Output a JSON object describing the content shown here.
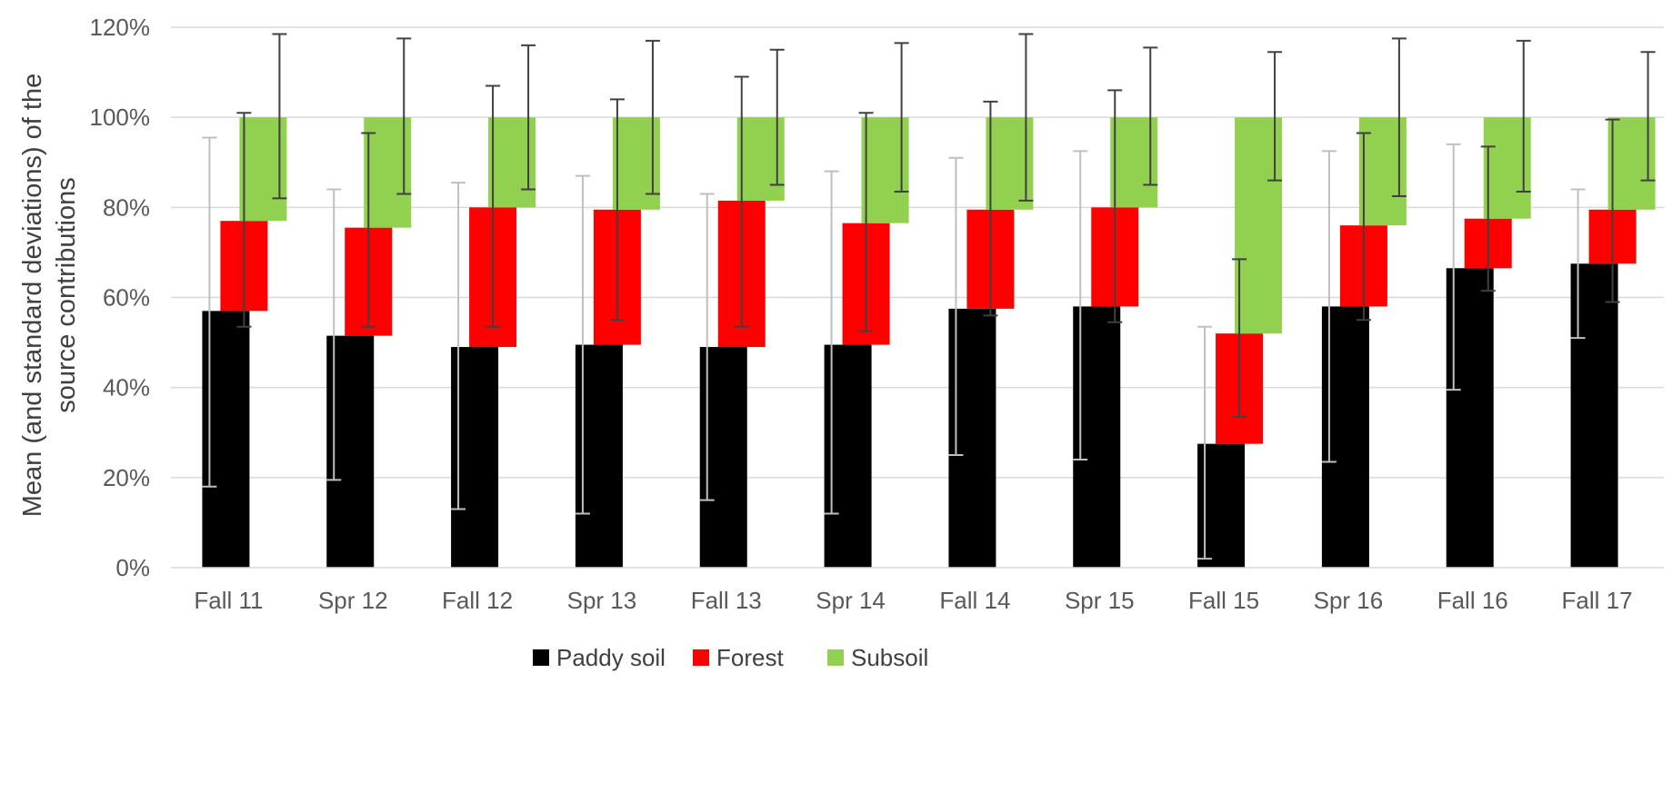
{
  "chart_data": {
    "type": "bar",
    "stacked": true,
    "ylabel_lines": [
      "Mean (and standard deviations) of the",
      "source contributions"
    ],
    "xlabel": "",
    "ylim": [
      0,
      120
    ],
    "ytick_values": [
      0,
      20,
      40,
      60,
      80,
      100,
      120
    ],
    "ytick_labels": [
      "0%",
      "20%",
      "40%",
      "60%",
      "80%",
      "100%",
      "120%"
    ],
    "grid": "horizontal",
    "legend_position": "bottom",
    "categories": [
      "Fall 11",
      "Spr 12",
      "Fall 12",
      "Spr 13",
      "Fall 13",
      "Spr 14",
      "Fall 14",
      "Spr 15",
      "Fall 15",
      "Spr 16",
      "Fall 16",
      "Fall 17"
    ],
    "series": [
      {
        "name": "Paddy soil",
        "color": "#000000",
        "errorbar_color": "#bfbfbf",
        "values": [
          57,
          51.5,
          49,
          49.5,
          49,
          49.5,
          57.5,
          58,
          27.5,
          58,
          66.5,
          67.5
        ],
        "error_low": [
          18,
          19.5,
          13,
          12,
          15,
          12,
          25,
          24,
          2,
          23.5,
          39.5,
          51
        ],
        "error_high": [
          95.5,
          84,
          85.5,
          87,
          83,
          88,
          91,
          92.5,
          53.5,
          92.5,
          94,
          84
        ]
      },
      {
        "name": "Forest",
        "color": "#ff0000",
        "errorbar_color": "#404040",
        "values": [
          20,
          24,
          31,
          30,
          32.5,
          27,
          22,
          22,
          24.5,
          18,
          11,
          12
        ],
        "error_low": [
          53.5,
          53.5,
          53.5,
          55,
          53.5,
          52.5,
          56,
          54.5,
          33.5,
          55,
          61.5,
          59
        ],
        "error_high": [
          101,
          96.5,
          107,
          104,
          109,
          101,
          103.5,
          106,
          68.5,
          96.5,
          93.5,
          99.5
        ]
      },
      {
        "name": "Subsoil",
        "color": "#92d050",
        "errorbar_color": "#404040",
        "values": [
          23,
          24.5,
          20,
          20.5,
          18.5,
          23.5,
          20.5,
          20,
          48,
          24,
          22.5,
          20.5
        ],
        "error_low": [
          82,
          83,
          84,
          83,
          85,
          83.5,
          81.5,
          85,
          86,
          82.5,
          83.5,
          86
        ],
        "error_high": [
          118.5,
          117.5,
          116,
          117,
          115,
          116.5,
          118.5,
          115.5,
          114.5,
          117.5,
          117,
          114.5
        ]
      }
    ]
  }
}
